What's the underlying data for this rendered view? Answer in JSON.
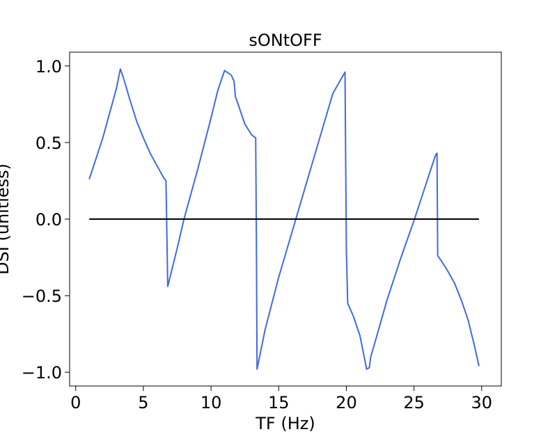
{
  "chart_data": {
    "type": "line",
    "title": "sONtOFF",
    "xlabel": "TF (Hz)",
    "ylabel": "DSI (unitless)",
    "xlim": [
      -0.45,
      31.45
    ],
    "ylim": [
      -1.09,
      1.09
    ],
    "x_ticks": [
      0,
      5,
      10,
      15,
      20,
      25,
      30
    ],
    "x_tick_labels": [
      "0",
      "5",
      "10",
      "15",
      "20",
      "25",
      "30"
    ],
    "y_ticks": [
      1.0,
      0.5,
      0.0,
      -0.5,
      -1.0
    ],
    "y_tick_labels": [
      "1.0",
      "0.5",
      "0.0",
      "−0.5",
      "−1.0"
    ],
    "grid": false,
    "series": [
      {
        "color": "#4169e1",
        "x": [
          1.0,
          2.0,
          3.0,
          3.3,
          3.5,
          4.0,
          4.5,
          5.0,
          5.5,
          6.0,
          6.5,
          6.67,
          6.7,
          6.8,
          7.5,
          8.0,
          8.5,
          9.0,
          9.5,
          10.0,
          10.5,
          11.0,
          11.5,
          11.7,
          11.8,
          12.0,
          12.5,
          13.0,
          13.3,
          13.35,
          13.4,
          14.0,
          15.0,
          16.0,
          17.0,
          18.0,
          19.0,
          19.9,
          20.0,
          20.1,
          20.5,
          21.0,
          21.5,
          21.7,
          21.8,
          22.0,
          23.0,
          24.0,
          25.0,
          26.0,
          26.6,
          26.7,
          26.75,
          27.0,
          27.5,
          28.0,
          28.5,
          29.0,
          29.5,
          29.8
        ],
        "y": [
          0.26,
          0.53,
          0.85,
          0.98,
          0.93,
          0.78,
          0.64,
          0.53,
          0.43,
          0.35,
          0.27,
          0.25,
          0.1,
          -0.44,
          -0.19,
          -0.0,
          0.16,
          0.32,
          0.49,
          0.66,
          0.84,
          0.97,
          0.94,
          0.9,
          0.8,
          0.75,
          0.62,
          0.55,
          0.53,
          -0.1,
          -0.98,
          -0.72,
          -0.38,
          -0.08,
          0.22,
          0.52,
          0.82,
          0.96,
          -0.2,
          -0.55,
          -0.63,
          -0.76,
          -0.98,
          -0.97,
          -0.9,
          -0.84,
          -0.53,
          -0.26,
          -0.01,
          0.26,
          0.42,
          0.43,
          -0.24,
          -0.27,
          -0.34,
          -0.42,
          -0.53,
          -0.66,
          -0.84,
          -0.96
        ]
      },
      {
        "color": "#000000",
        "x": [
          1.0,
          29.8
        ],
        "y": [
          0.0,
          0.0
        ]
      }
    ]
  }
}
